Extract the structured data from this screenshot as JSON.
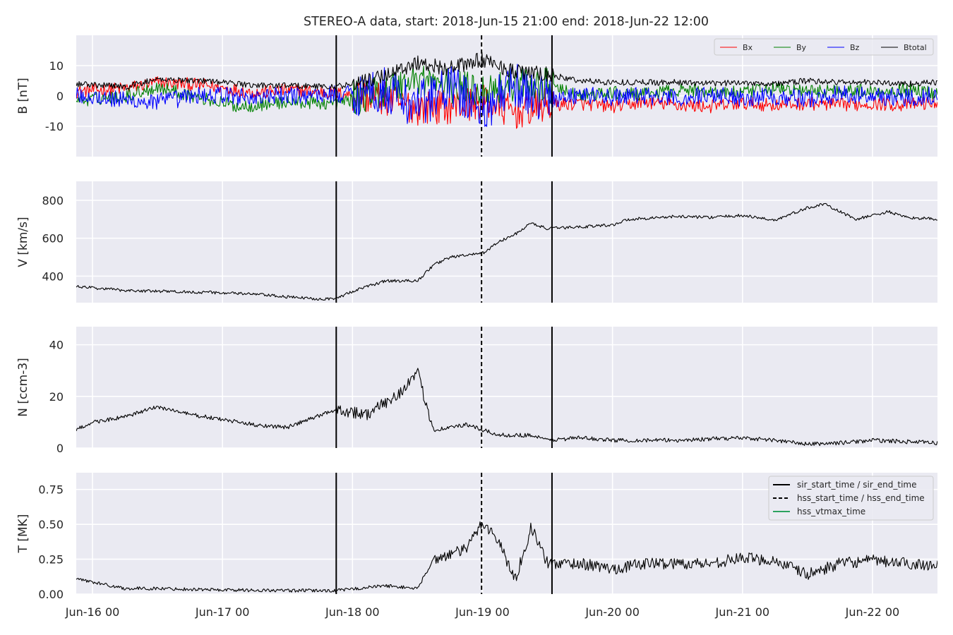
{
  "chart_data": {
    "type": "line",
    "title": "STEREO-A data, start: 2018-Jun-15 21:00  end: 2018-Jun-22 12:00",
    "x_range": [
      "2018-06-15 21:00",
      "2018-06-22 12:00"
    ],
    "x_ticks": [
      "Jun-16 00",
      "Jun-17 00",
      "Jun-18 00",
      "Jun-19 00",
      "Jun-20 00",
      "Jun-21 00",
      "Jun-22 00"
    ],
    "grid": true,
    "events": [
      {
        "name": "sir_start_time",
        "time": "2018-06-17 21:00",
        "style": "solid",
        "color": "#000000"
      },
      {
        "name": "hss_start_time",
        "time": "2018-06-18 23:50",
        "style": "dashed",
        "color": "#000000"
      },
      {
        "name": "sir_end_time",
        "time": "2018-06-19 12:50",
        "style": "solid",
        "color": "#000000"
      }
    ],
    "event_legend": {
      "placement": "upper right of T panel",
      "entries": [
        {
          "label": "sir_start_time / sir_end_time",
          "style": "solid",
          "color": "#000000"
        },
        {
          "label": "hss_start_time / hss_end_time",
          "style": "dashed",
          "color": "#000000"
        },
        {
          "label": "hss_vtmax_time",
          "style": "solid",
          "color": "#2ca25f"
        }
      ]
    },
    "panels": [
      {
        "id": "B",
        "ylabel": "B [nT]",
        "ylim": [
          -20,
          20
        ],
        "yticks": [
          -10,
          0,
          10
        ],
        "legend": {
          "placement": "upper right"
        },
        "series": [
          {
            "name": "Bx",
            "color": "#ff0000",
            "points": [
              [
                "2018-06-15 21:00",
                1.5
              ],
              [
                "2018-06-16 06:00",
                2.5
              ],
              [
                "2018-06-16 12:00",
                4.5
              ],
              [
                "2018-06-16 21:00",
                3.5
              ],
              [
                "2018-06-17 06:00",
                1.0
              ],
              [
                "2018-06-17 12:00",
                2.0
              ],
              [
                "2018-06-17 21:00",
                1.0
              ],
              [
                "2018-06-18 06:00",
                -1.0
              ],
              [
                "2018-06-18 12:00",
                -4.0
              ],
              [
                "2018-06-18 18:00",
                -3.5
              ],
              [
                "2018-06-19 00:00",
                -2.0
              ],
              [
                "2018-06-19 06:00",
                -5.5
              ],
              [
                "2018-06-19 12:00",
                -3.0
              ],
              [
                "2018-06-19 18:00",
                -2.5
              ],
              [
                "2018-06-20 00:00",
                -3.5
              ],
              [
                "2018-06-20 06:00",
                -2.0
              ],
              [
                "2018-06-20 12:00",
                -3.0
              ],
              [
                "2018-06-20 18:00",
                -3.5
              ],
              [
                "2018-06-21 00:00",
                -2.5
              ],
              [
                "2018-06-21 06:00",
                -3.0
              ],
              [
                "2018-06-21 12:00",
                -2.5
              ],
              [
                "2018-06-21 18:00",
                -3.0
              ],
              [
                "2018-06-22 00:00",
                -2.5
              ],
              [
                "2018-06-22 06:00",
                -3.0
              ],
              [
                "2018-06-22 12:00",
                -2.0
              ]
            ]
          },
          {
            "name": "By",
            "color": "#008000",
            "points": [
              [
                "2018-06-15 21:00",
                -1.5
              ],
              [
                "2018-06-16 06:00",
                0.0
              ],
              [
                "2018-06-16 12:00",
                3.0
              ],
              [
                "2018-06-16 21:00",
                -1.0
              ],
              [
                "2018-06-17 03:00",
                -3.5
              ],
              [
                "2018-06-17 12:00",
                -2.0
              ],
              [
                "2018-06-17 21:00",
                -2.5
              ],
              [
                "2018-06-18 06:00",
                2.0
              ],
              [
                "2018-06-18 12:00",
                6.0
              ],
              [
                "2018-06-18 18:00",
                3.0
              ],
              [
                "2018-06-19 00:00",
                2.0
              ],
              [
                "2018-06-19 06:00",
                4.0
              ],
              [
                "2018-06-19 12:00",
                3.5
              ],
              [
                "2018-06-19 18:00",
                0.0
              ],
              [
                "2018-06-20 00:00",
                1.0
              ],
              [
                "2018-06-20 06:00",
                0.5
              ],
              [
                "2018-06-20 12:00",
                2.0
              ],
              [
                "2018-06-20 18:00",
                1.5
              ],
              [
                "2018-06-21 00:00",
                1.0
              ],
              [
                "2018-06-21 06:00",
                2.5
              ],
              [
                "2018-06-21 12:00",
                1.5
              ],
              [
                "2018-06-21 18:00",
                2.0
              ],
              [
                "2018-06-22 00:00",
                1.5
              ],
              [
                "2018-06-22 06:00",
                2.0
              ],
              [
                "2018-06-22 12:00",
                1.0
              ]
            ]
          },
          {
            "name": "Bz",
            "color": "#0000ff",
            "points": [
              [
                "2018-06-15 21:00",
                0.5
              ],
              [
                "2018-06-16 06:00",
                -1.5
              ],
              [
                "2018-06-16 12:00",
                -2.0
              ],
              [
                "2018-06-16 21:00",
                0.5
              ],
              [
                "2018-06-17 06:00",
                -0.5
              ],
              [
                "2018-06-17 12:00",
                0.0
              ],
              [
                "2018-06-17 21:00",
                0.5
              ],
              [
                "2018-06-18 06:00",
                2.0
              ],
              [
                "2018-06-18 12:00",
                -3.0
              ],
              [
                "2018-06-18 18:00",
                3.0
              ],
              [
                "2018-06-19 00:00",
                -4.0
              ],
              [
                "2018-06-19 06:00",
                3.0
              ],
              [
                "2018-06-19 12:00",
                -1.0
              ],
              [
                "2018-06-19 18:00",
                0.5
              ],
              [
                "2018-06-20 00:00",
                -0.5
              ],
              [
                "2018-06-20 06:00",
                0.0
              ],
              [
                "2018-06-20 12:00",
                -1.0
              ],
              [
                "2018-06-20 18:00",
                0.5
              ],
              [
                "2018-06-21 00:00",
                -0.5
              ],
              [
                "2018-06-21 06:00",
                0.0
              ],
              [
                "2018-06-21 12:00",
                -1.0
              ],
              [
                "2018-06-21 18:00",
                0.5
              ],
              [
                "2018-06-22 00:00",
                0.0
              ],
              [
                "2018-06-22 06:00",
                -0.5
              ],
              [
                "2018-06-22 12:00",
                0.5
              ]
            ]
          },
          {
            "name": "Btotal",
            "color": "#000000",
            "points": [
              [
                "2018-06-15 21:00",
                4.0
              ],
              [
                "2018-06-16 06:00",
                3.0
              ],
              [
                "2018-06-16 12:00",
                5.5
              ],
              [
                "2018-06-16 21:00",
                5.0
              ],
              [
                "2018-06-17 06:00",
                3.5
              ],
              [
                "2018-06-17 12:00",
                3.5
              ],
              [
                "2018-06-17 21:00",
                3.0
              ],
              [
                "2018-06-18 03:00",
                5.0
              ],
              [
                "2018-06-18 12:00",
                11.0
              ],
              [
                "2018-06-18 18:00",
                9.0
              ],
              [
                "2018-06-19 00:00",
                12.0
              ],
              [
                "2018-06-19 06:00",
                8.0
              ],
              [
                "2018-06-19 12:00",
                7.0
              ],
              [
                "2018-06-19 18:00",
                5.0
              ],
              [
                "2018-06-20 00:00",
                4.5
              ],
              [
                "2018-06-20 06:00",
                4.5
              ],
              [
                "2018-06-20 12:00",
                4.5
              ],
              [
                "2018-06-20 18:00",
                4.0
              ],
              [
                "2018-06-21 00:00",
                4.5
              ],
              [
                "2018-06-21 06:00",
                4.0
              ],
              [
                "2018-06-21 12:00",
                5.0
              ],
              [
                "2018-06-21 18:00",
                4.5
              ],
              [
                "2018-06-22 00:00",
                4.5
              ],
              [
                "2018-06-22 06:00",
                4.0
              ],
              [
                "2018-06-22 12:00",
                4.5
              ]
            ]
          }
        ]
      },
      {
        "id": "V",
        "ylabel": "V [km/s]",
        "ylim": [
          260,
          900
        ],
        "yticks": [
          400,
          600,
          800
        ],
        "series": [
          {
            "name": "",
            "color": "#000000",
            "points": [
              [
                "2018-06-15 21:00",
                345
              ],
              [
                "2018-06-16 06:00",
                325
              ],
              [
                "2018-06-16 12:00",
                320
              ],
              [
                "2018-06-16 21:00",
                315
              ],
              [
                "2018-06-17 06:00",
                305
              ],
              [
                "2018-06-17 12:00",
                290
              ],
              [
                "2018-06-17 18:00",
                280
              ],
              [
                "2018-06-17 21:00",
                282
              ],
              [
                "2018-06-18 00:00",
                320
              ],
              [
                "2018-06-18 06:00",
                375
              ],
              [
                "2018-06-18 12:00",
                375
              ],
              [
                "2018-06-18 15:00",
                460
              ],
              [
                "2018-06-18 18:00",
                500
              ],
              [
                "2018-06-19 00:00",
                520
              ],
              [
                "2018-06-19 03:00",
                580
              ],
              [
                "2018-06-19 06:00",
                620
              ],
              [
                "2018-06-19 09:00",
                680
              ],
              [
                "2018-06-19 12:00",
                650
              ],
              [
                "2018-06-19 18:00",
                660
              ],
              [
                "2018-06-20 00:00",
                670
              ],
              [
                "2018-06-20 03:00",
                700
              ],
              [
                "2018-06-20 12:00",
                715
              ],
              [
                "2018-06-20 18:00",
                710
              ],
              [
                "2018-06-21 00:00",
                720
              ],
              [
                "2018-06-21 06:00",
                695
              ],
              [
                "2018-06-21 12:00",
                760
              ],
              [
                "2018-06-21 15:00",
                780
              ],
              [
                "2018-06-21 21:00",
                700
              ],
              [
                "2018-06-22 03:00",
                740
              ],
              [
                "2018-06-22 06:00",
                710
              ],
              [
                "2018-06-22 12:00",
                700
              ]
            ]
          }
        ]
      },
      {
        "id": "N",
        "ylabel": "N [ccm-3]",
        "ylim": [
          0,
          47
        ],
        "yticks": [
          0,
          20,
          40
        ],
        "series": [
          {
            "name": "",
            "color": "#000000",
            "points": [
              [
                "2018-06-15 21:00",
                7
              ],
              [
                "2018-06-16 00:00",
                10
              ],
              [
                "2018-06-16 06:00",
                12
              ],
              [
                "2018-06-16 12:00",
                16
              ],
              [
                "2018-06-16 18:00",
                13
              ],
              [
                "2018-06-17 00:00",
                11
              ],
              [
                "2018-06-17 06:00",
                9
              ],
              [
                "2018-06-17 12:00",
                8
              ],
              [
                "2018-06-17 21:00",
                15
              ],
              [
                "2018-06-18 03:00",
                13
              ],
              [
                "2018-06-18 09:00",
                22
              ],
              [
                "2018-06-18 12:00",
                29
              ],
              [
                "2018-06-18 15:00",
                7
              ],
              [
                "2018-06-18 21:00",
                9
              ],
              [
                "2018-06-19 03:00",
                5
              ],
              [
                "2018-06-19 09:00",
                5
              ],
              [
                "2018-06-19 12:00",
                3
              ],
              [
                "2018-06-19 18:00",
                4
              ],
              [
                "2018-06-20 00:00",
                3
              ],
              [
                "2018-06-20 12:00",
                3
              ],
              [
                "2018-06-21 00:00",
                4
              ],
              [
                "2018-06-21 06:00",
                3
              ],
              [
                "2018-06-21 12:00",
                1.5
              ],
              [
                "2018-06-21 18:00",
                2
              ],
              [
                "2018-06-22 00:00",
                3
              ],
              [
                "2018-06-22 06:00",
                2.5
              ],
              [
                "2018-06-22 12:00",
                2
              ]
            ]
          }
        ]
      },
      {
        "id": "T",
        "ylabel": "T [MK]",
        "ylim": [
          0,
          0.87
        ],
        "yticks": [
          0.0,
          0.25,
          0.5,
          0.75
        ],
        "series": [
          {
            "name": "",
            "color": "#000000",
            "points": [
              [
                "2018-06-15 21:00",
                0.11
              ],
              [
                "2018-06-16 06:00",
                0.04
              ],
              [
                "2018-06-16 12:00",
                0.04
              ],
              [
                "2018-06-17 00:00",
                0.03
              ],
              [
                "2018-06-17 12:00",
                0.025
              ],
              [
                "2018-06-17 21:00",
                0.025
              ],
              [
                "2018-06-18 06:00",
                0.06
              ],
              [
                "2018-06-18 12:00",
                0.04
              ],
              [
                "2018-06-18 15:00",
                0.25
              ],
              [
                "2018-06-18 21:00",
                0.32
              ],
              [
                "2018-06-19 00:00",
                0.52
              ],
              [
                "2018-06-19 03:00",
                0.38
              ],
              [
                "2018-06-19 06:00",
                0.1
              ],
              [
                "2018-06-19 09:00",
                0.48
              ],
              [
                "2018-06-19 12:00",
                0.22
              ],
              [
                "2018-06-19 18:00",
                0.22
              ],
              [
                "2018-06-20 00:00",
                0.18
              ],
              [
                "2018-06-20 06:00",
                0.22
              ],
              [
                "2018-06-20 12:00",
                0.22
              ],
              [
                "2018-06-20 18:00",
                0.22
              ],
              [
                "2018-06-21 00:00",
                0.26
              ],
              [
                "2018-06-21 06:00",
                0.24
              ],
              [
                "2018-06-21 12:00",
                0.14
              ],
              [
                "2018-06-21 18:00",
                0.22
              ],
              [
                "2018-06-22 00:00",
                0.24
              ],
              [
                "2018-06-22 06:00",
                0.22
              ],
              [
                "2018-06-22 12:00",
                0.21
              ]
            ]
          }
        ]
      }
    ]
  }
}
